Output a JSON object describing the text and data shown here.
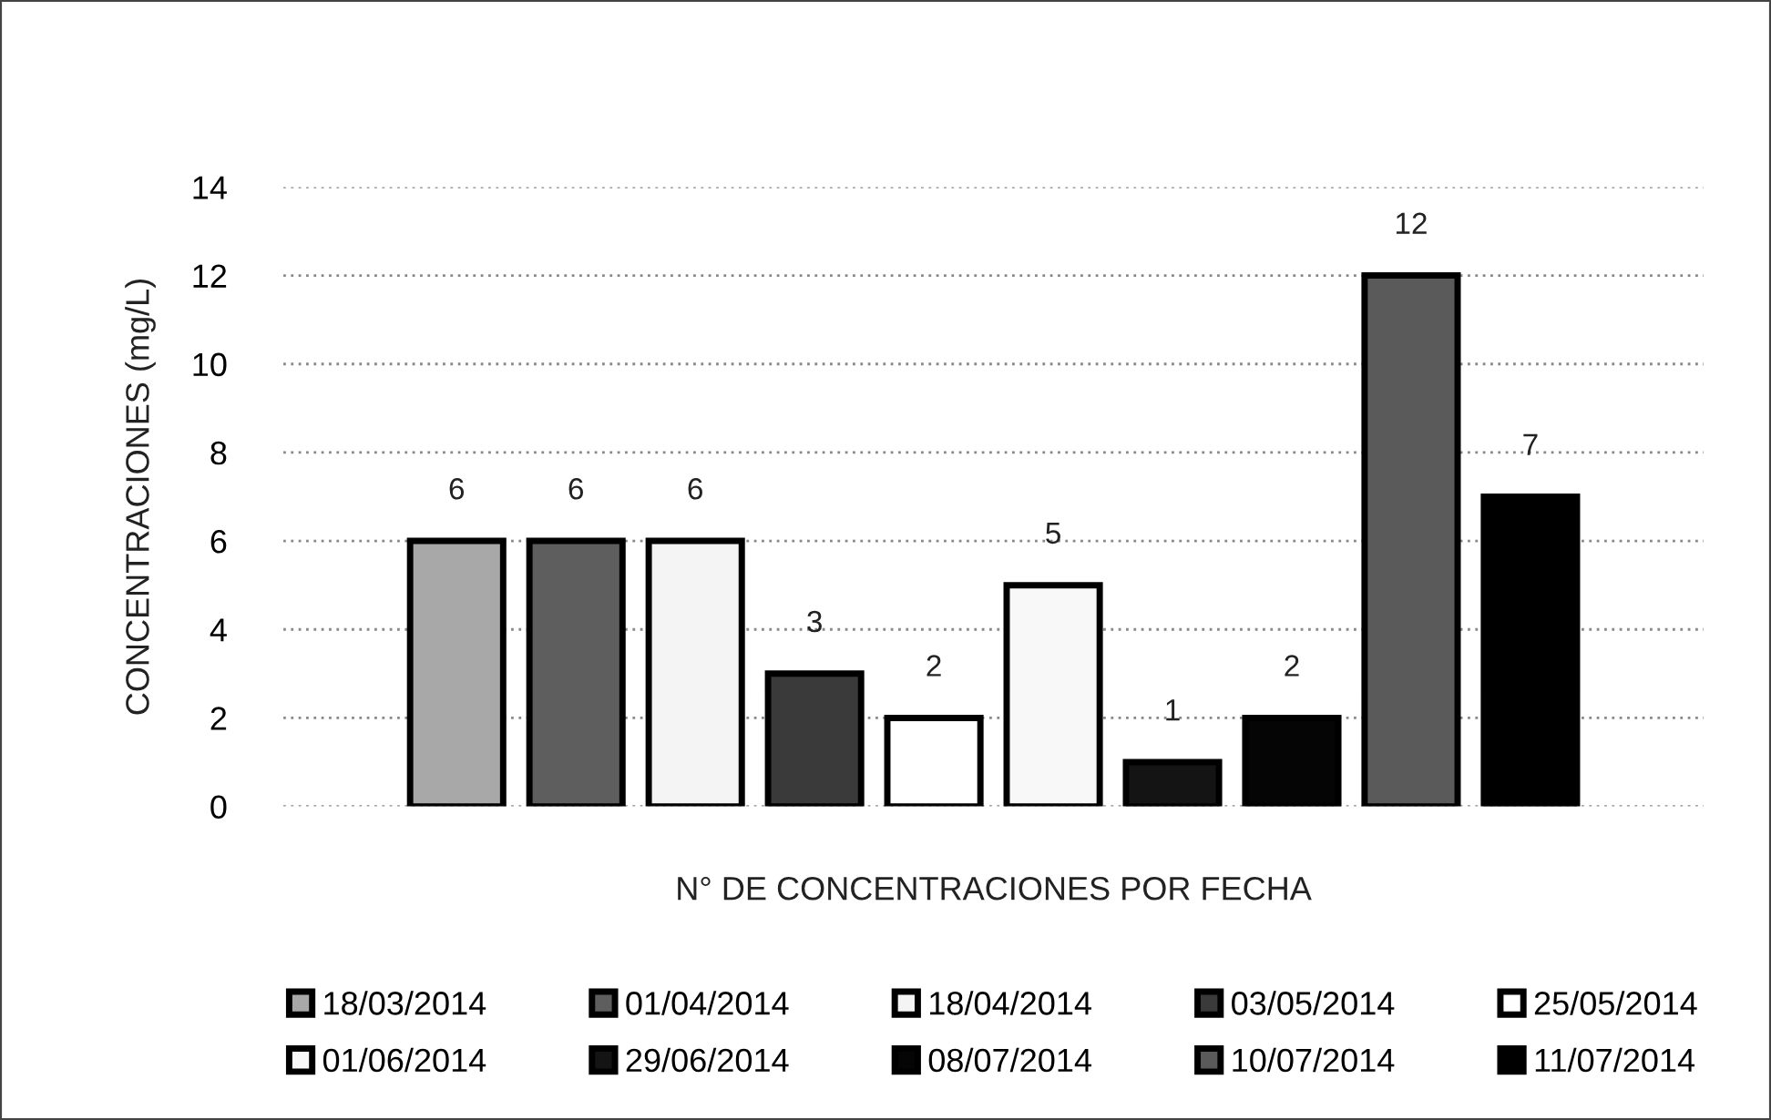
{
  "chart_data": {
    "type": "bar",
    "xlabel": "N° DE CONCENTRACIONES POR FECHA",
    "ylabel": "CONCENTRACIONES (mg/L)",
    "categories": [
      null
    ],
    "series": [
      {
        "name": "18/03/2014",
        "color": "#a8a8a8",
        "values": [
          6
        ]
      },
      {
        "name": "01/04/2014",
        "color": "#5e5e5e",
        "values": [
          6
        ]
      },
      {
        "name": "18/04/2014",
        "color": "#f4f4f4",
        "values": [
          6
        ]
      },
      {
        "name": "03/05/2014",
        "color": "#3a3a3a",
        "values": [
          3
        ]
      },
      {
        "name": "25/05/2014",
        "color": "#ffffff",
        "values": [
          2
        ]
      },
      {
        "name": "01/06/2014",
        "color": "#f8f8f8",
        "values": [
          5
        ]
      },
      {
        "name": "29/06/2014",
        "color": "#141414",
        "values": [
          1
        ]
      },
      {
        "name": "08/07/2014",
        "color": "#050505",
        "values": [
          2
        ]
      },
      {
        "name": "10/07/2014",
        "color": "#5a5a5a",
        "values": [
          12
        ]
      },
      {
        "name": "11/07/2014",
        "color": "#000000",
        "values": [
          7
        ]
      }
    ],
    "ylim": [
      0,
      14
    ],
    "yticks": [
      0,
      2,
      4,
      6,
      8,
      10,
      12,
      14
    ],
    "grid": "y",
    "legend": "bottom",
    "data_labels": true
  }
}
